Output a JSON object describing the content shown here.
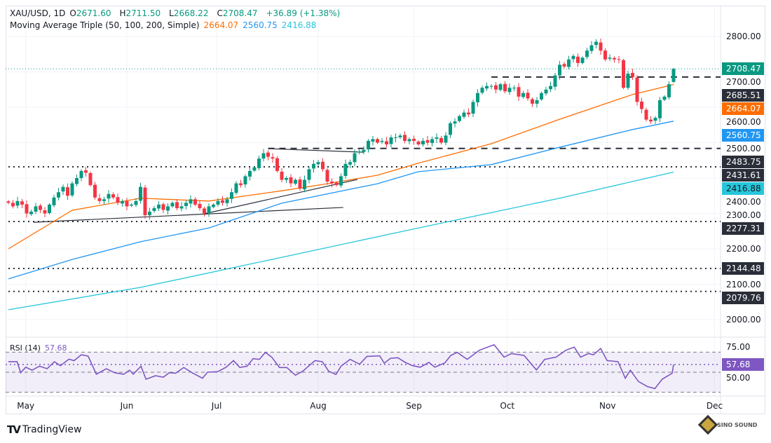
{
  "header": {
    "symbol": "XAU/USD, 1D",
    "open_label": "O",
    "open": "2671.60",
    "high_label": "H",
    "high": "2711.50",
    "low_label": "L",
    "low": "2668.22",
    "close_label": "C",
    "close": "2708.47",
    "change": "+36.89 (+1.38%)"
  },
  "ma_legend": {
    "label": "Moving Average Triple (50, 100, 200, Simple)",
    "ma50": "2664.07",
    "ma100": "2560.75",
    "ma200": "2416.88"
  },
  "rsi_legend": {
    "label": "RSI (14)",
    "value": "57.68"
  },
  "footer": {
    "brand": "TradingView",
    "watermark": "SINO SOUND"
  },
  "colors": {
    "up": "#089981",
    "down": "#f23645",
    "ma50": "#ff6d00",
    "ma100": "#2196f3",
    "ma200": "#26c6da",
    "rsi": "#7e57c2",
    "level": "#2a2e39"
  },
  "chart_data": {
    "type": "candlestick",
    "title": "XAU/USD, 1D",
    "price_axis": {
      "ticks": [
        "2800.00",
        "2700.00",
        "2600.00",
        "2500.00",
        "2400.00",
        "2300.00",
        "2200.00",
        "2100.00",
        "2000.00"
      ],
      "tick_values": [
        2800,
        2700,
        2600,
        2500,
        2400,
        2300,
        2200,
        2100,
        2000
      ]
    },
    "time_axis": {
      "labels": [
        "May",
        "Jun",
        "Jul",
        "Aug",
        "Sep",
        "Oct",
        "Nov",
        "Dec"
      ],
      "label_index": [
        3.8,
        26,
        45.7,
        68,
        89,
        109.5,
        131.5,
        155
      ]
    },
    "closes": [
      2330,
      2320,
      2335,
      2325,
      2300,
      2305,
      2320,
      2310,
      2300,
      2325,
      2345,
      2360,
      2375,
      2350,
      2385,
      2400,
      2420,
      2415,
      2380,
      2345,
      2335,
      2340,
      2355,
      2345,
      2330,
      2335,
      2320,
      2325,
      2335,
      2375,
      2295,
      2305,
      2315,
      2325,
      2310,
      2320,
      2330,
      2315,
      2320,
      2330,
      2340,
      2325,
      2315,
      2300,
      2320,
      2325,
      2335,
      2330,
      2340,
      2360,
      2385,
      2380,
      2405,
      2420,
      2430,
      2455,
      2470,
      2460,
      2455,
      2420,
      2395,
      2400,
      2385,
      2395,
      2370,
      2395,
      2425,
      2440,
      2445,
      2425,
      2390,
      2385,
      2380,
      2405,
      2440,
      2445,
      2470,
      2475,
      2480,
      2505,
      2510,
      2500,
      2505,
      2495,
      2515,
      2515,
      2520,
      2505,
      2510,
      2505,
      2495,
      2505,
      2500,
      2510,
      2515,
      2500,
      2520,
      2555,
      2560,
      2575,
      2585,
      2580,
      2615,
      2640,
      2655,
      2660,
      2660,
      2650,
      2665,
      2645,
      2655,
      2655,
      2630,
      2640,
      2625,
      2610,
      2620,
      2640,
      2650,
      2660,
      2690,
      2720,
      2715,
      2735,
      2745,
      2725,
      2740,
      2760,
      2775,
      2785,
      2760,
      2735,
      2740,
      2735,
      2735,
      2655,
      2695,
      2685,
      2615,
      2595,
      2565,
      2560,
      2570,
      2620,
      2630,
      2665,
      2708.47
    ],
    "last_open": 2671.6,
    "last_high": 2711.5,
    "last_low": 2668.22,
    "ma_series": [
      {
        "name": "MA50",
        "last": "2664.07",
        "index": [
          0,
          14,
          29,
          44,
          60,
          70,
          81,
          90,
          106,
          121,
          137,
          146
        ],
        "values": [
          2200,
          2309,
          2343,
          2335,
          2364,
          2384,
          2408,
          2442,
          2497,
          2566,
          2636,
          2664.07
        ]
      },
      {
        "name": "MA100",
        "last": "2560.75",
        "index": [
          0,
          14,
          29,
          44,
          60,
          81,
          90,
          106,
          121,
          137,
          146
        ],
        "values": [
          2115,
          2170,
          2220,
          2259,
          2329,
          2384,
          2418,
          2438,
          2487,
          2537,
          2560.75
        ]
      },
      {
        "name": "MA200",
        "last": "2416.88",
        "index": [
          0,
          29,
          60,
          90,
          121,
          146
        ],
        "values": [
          2028,
          2091,
          2176,
          2259,
          2343,
          2416.88
        ]
      }
    ],
    "levels": [
      {
        "price": 2685.51,
        "label": "2685.51",
        "style": "dashed",
        "from_index": 106
      },
      {
        "price": 2483.75,
        "label": "2483.75",
        "style": "dashed",
        "from_index": 57
      },
      {
        "price": 2431.61,
        "label": "2431.61",
        "style": "dotted",
        "from_index": 0
      },
      {
        "price": 2277.31,
        "label": "2277.31",
        "style": "dotted",
        "from_index": 0
      },
      {
        "price": 2144.48,
        "label": "2144.48",
        "style": "dotted",
        "from_index": 0
      },
      {
        "price": 2079.76,
        "label": "2079.76",
        "style": "dotted",
        "from_index": 0
      }
    ],
    "trendlines": [
      {
        "from": [
          5.5,
          2275
        ],
        "to": [
          73.5,
          2317
        ]
      },
      {
        "from": [
          43,
          2299
        ],
        "to": [
          76.6,
          2396
        ]
      },
      {
        "from": [
          57,
          2483
        ],
        "to": [
          78,
          2473
        ]
      }
    ],
    "rsi": {
      "levels": [
        70,
        50,
        30
      ],
      "axis_labels": [
        "75.00",
        "50.00"
      ],
      "axis_values": [
        75,
        50
      ],
      "last": "57.68",
      "index": [
        0,
        1.9,
        2.7,
        3.8,
        5.2,
        6.8,
        8.5,
        10.1,
        11.4,
        13.3,
        14.4,
        16,
        17.5,
        19.3,
        21.5,
        23.3,
        25.3,
        26.6,
        27.4,
        29.1,
        30.2,
        32.3,
        34,
        35.3,
        36.7,
        38.5,
        40.5,
        42.6,
        43.7,
        45.9,
        47.8,
        49.4,
        50.8,
        52.4,
        53.7,
        55.1,
        56.4,
        57.8,
        59.5,
        61.1,
        63,
        64.6,
        67.3,
        68.9,
        70.3,
        71.9,
        73,
        75,
        77.1,
        78.7,
        81.5,
        82.5,
        83.9,
        85.5,
        87.1,
        88.7,
        90.4,
        92.3,
        93.6,
        95.8,
        97.1,
        98.5,
        100.7,
        103.4,
        106.6,
        108.8,
        110.4,
        113.2,
        114.8,
        115.9,
        117.7,
        120.2,
        122.4,
        124.2,
        125.6,
        127.3,
        128.4,
        130,
        131.4,
        133.8,
        135.4,
        136.5,
        138.3,
        140.3,
        141.9,
        143.5,
        145.7,
        146
      ],
      "values": [
        60.5,
        60.5,
        49.5,
        55,
        52,
        56,
        53.5,
        60.5,
        56.5,
        63,
        61.5,
        67.4,
        66,
        48,
        53.5,
        49.5,
        48,
        52,
        48,
        56,
        43,
        46.5,
        45,
        49.5,
        49,
        54.7,
        49,
        44,
        50,
        50.5,
        55,
        61.6,
        54.7,
        56,
        63.5,
        62.8,
        69.8,
        65,
        54.7,
        54.7,
        47,
        51,
        61.6,
        60.5,
        51,
        47.7,
        56,
        62.8,
        58,
        65.8,
        66.3,
        59,
        64,
        64.4,
        59.8,
        56.5,
        55,
        59.8,
        55,
        59.3,
        66.7,
        69.8,
        62.8,
        72,
        77.4,
        65,
        68.6,
        66.7,
        58,
        52.3,
        62.8,
        65,
        72,
        75,
        65,
        68.6,
        67.4,
        73.7,
        61.6,
        60.5,
        44,
        52,
        40.7,
        35.6,
        33.7,
        43,
        49,
        57.68
      ]
    }
  }
}
